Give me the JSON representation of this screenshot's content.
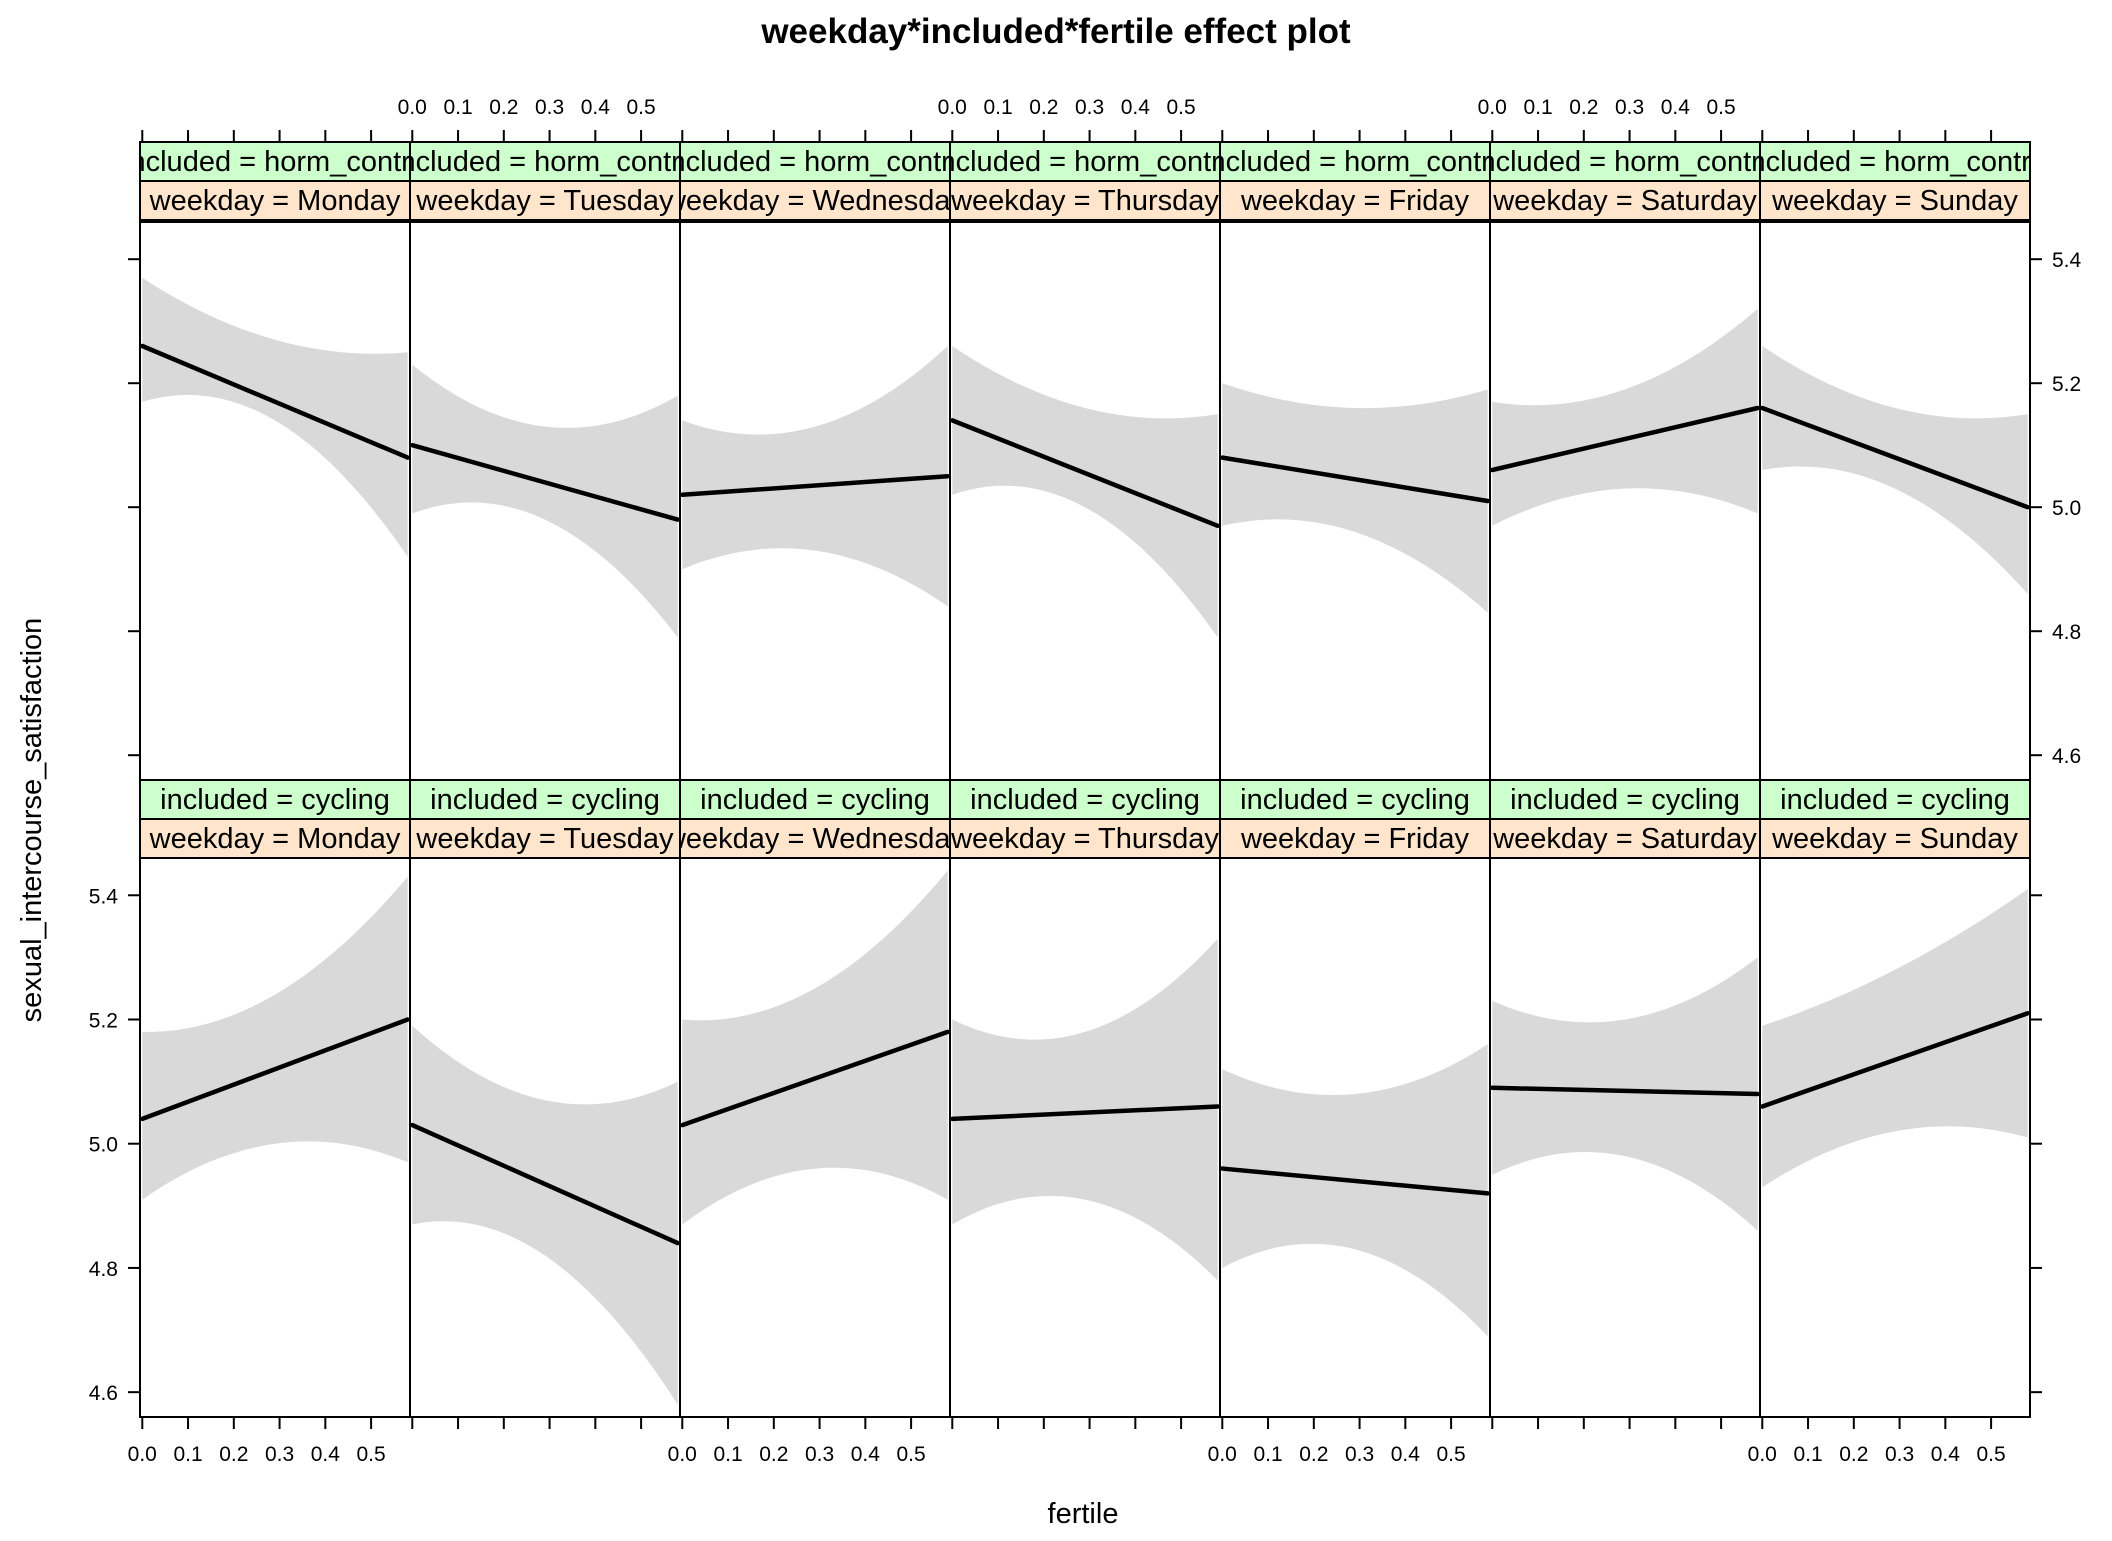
{
  "chart_data": {
    "type": "line",
    "title": "weekday*included*fertile effect plot",
    "xlabel": "fertile",
    "ylabel": "sexual_intercourse_satisfaction",
    "xlim": [
      -0.005,
      0.585
    ],
    "ylim": [
      4.56,
      5.46
    ],
    "x_ticks": [
      0.0,
      0.1,
      0.2,
      0.3,
      0.4,
      0.5
    ],
    "x_tick_labels": [
      "0.0",
      "0.1",
      "0.2",
      "0.3",
      "0.4",
      "0.5"
    ],
    "y_ticks": [
      4.6,
      4.8,
      5.0,
      5.2,
      5.4
    ],
    "y_tick_labels": [
      "4.6",
      "4.8",
      "5.0",
      "5.2",
      "5.4"
    ],
    "x_range": [
      0.0,
      0.58
    ],
    "band_color": "#d9d9d9",
    "line_color": "#000000",
    "strip_colors": {
      "included": "#ccffcc",
      "weekday": "#ffe5cc"
    },
    "weekdays": [
      "Monday",
      "Tuesday",
      "Wednesday",
      "Thursday",
      "Friday",
      "Saturday",
      "Sunday"
    ],
    "rows": [
      {
        "included": "horm_contra",
        "strip_included": "included = horm_contra",
        "panels": [
          {
            "weekday": "Monday",
            "strip_weekday": "weekday = Monday",
            "line": [
              5.26,
              5.08
            ],
            "lower": [
              5.17,
              5.14,
              4.92
            ],
            "upper": [
              5.37,
              5.27,
              5.25
            ]
          },
          {
            "weekday": "Tuesday",
            "strip_weekday": "weekday = Tuesday",
            "line": [
              5.1,
              4.98
            ],
            "lower": [
              4.99,
              4.98,
              4.79
            ],
            "upper": [
              5.23,
              5.13,
              5.18
            ]
          },
          {
            "weekday": "Wednesday",
            "strip_weekday": "weekday = Wednesday",
            "line": [
              5.02,
              5.05
            ],
            "lower": [
              4.9,
              4.93,
              4.84
            ],
            "upper": [
              5.14,
              5.13,
              5.26
            ]
          },
          {
            "weekday": "Thursday",
            "strip_weekday": "weekday = Thursday",
            "line": [
              5.14,
              4.97
            ],
            "lower": [
              5.02,
              5.0,
              4.79
            ],
            "upper": [
              5.26,
              5.16,
              5.15
            ]
          },
          {
            "weekday": "Friday",
            "strip_weekday": "weekday = Friday",
            "line": [
              5.08,
              5.01
            ],
            "lower": [
              4.97,
              4.96,
              4.83
            ],
            "upper": [
              5.2,
              5.16,
              5.19
            ]
          },
          {
            "weekday": "Saturday",
            "strip_weekday": "weekday = Saturday",
            "line": [
              5.06,
              5.16
            ],
            "lower": [
              4.97,
              5.03,
              4.99
            ],
            "upper": [
              5.17,
              5.19,
              5.32
            ]
          },
          {
            "weekday": "Sunday",
            "strip_weekday": "weekday = Sunday",
            "line": [
              5.16,
              5.0
            ],
            "lower": [
              5.06,
              5.03,
              4.86
            ],
            "upper": [
              5.26,
              5.16,
              5.15
            ]
          }
        ]
      },
      {
        "included": "cycling",
        "strip_included": "included = cycling",
        "panels": [
          {
            "weekday": "Monday",
            "strip_weekday": "weekday = Monday",
            "line": [
              5.04,
              5.2
            ],
            "lower": [
              4.91,
              5.0,
              4.97
            ],
            "upper": [
              5.18,
              5.24,
              5.43
            ]
          },
          {
            "weekday": "Tuesday",
            "strip_weekday": "weekday = Tuesday",
            "line": [
              5.03,
              4.84
            ],
            "lower": [
              4.87,
              4.82,
              4.58
            ],
            "upper": [
              5.19,
              5.07,
              5.1
            ]
          },
          {
            "weekday": "Wednesday",
            "strip_weekday": "weekday = Wednesday",
            "line": [
              5.03,
              5.18
            ],
            "lower": [
              4.87,
              4.96,
              4.91
            ],
            "upper": [
              5.2,
              5.25,
              5.44
            ]
          },
          {
            "weekday": "Thursday",
            "strip_weekday": "weekday = Thursday",
            "line": [
              5.04,
              5.06
            ],
            "lower": [
              4.87,
              4.91,
              4.78
            ],
            "upper": [
              5.2,
              5.18,
              5.33
            ]
          },
          {
            "weekday": "Friday",
            "strip_weekday": "weekday = Friday",
            "line": [
              4.96,
              4.92
            ],
            "lower": [
              4.8,
              4.83,
              4.69
            ],
            "upper": [
              5.12,
              5.08,
              5.16
            ]
          },
          {
            "weekday": "Saturday",
            "strip_weekday": "weekday = Saturday",
            "line": [
              5.09,
              5.08
            ],
            "lower": [
              4.95,
              4.98,
              4.86
            ],
            "upper": [
              5.23,
              5.2,
              5.3
            ]
          },
          {
            "weekday": "Sunday",
            "strip_weekday": "weekday = Sunday",
            "line": [
              5.06,
              5.21
            ],
            "lower": [
              4.93,
              5.02,
              5.01
            ],
            "upper": [
              5.19,
              5.28,
              5.41
            ]
          }
        ]
      }
    ]
  }
}
